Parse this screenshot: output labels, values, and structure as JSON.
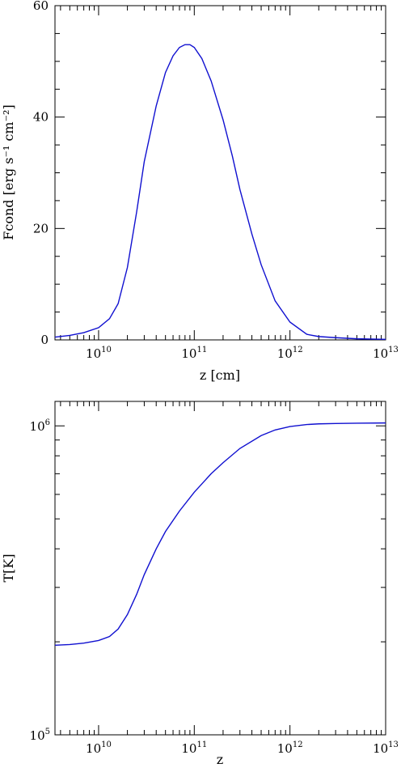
{
  "chart_data": [
    {
      "type": "line",
      "title": "",
      "xlabel": "z [cm]",
      "ylabel": "Fcond [erg s⁻¹ cm⁻²]",
      "x_scale": "log",
      "y_scale": "linear",
      "xlim": [
        3500000000.0,
        10000000000000.0
      ],
      "ylim": [
        0,
        60
      ],
      "x_ticks": [
        {
          "value": 10000000000.0,
          "base": "10",
          "exp": "10"
        },
        {
          "value": 100000000000.0,
          "base": "10",
          "exp": "11"
        },
        {
          "value": 1000000000000.0,
          "base": "10",
          "exp": "12"
        },
        {
          "value": 10000000000000.0,
          "base": "10",
          "exp": "13"
        }
      ],
      "y_ticks": [
        {
          "value": 0,
          "label": "0"
        },
        {
          "value": 20,
          "label": "20"
        },
        {
          "value": 40,
          "label": "40"
        },
        {
          "value": 60,
          "label": "60"
        }
      ],
      "line_color": "#1010d0",
      "series": [
        {
          "x": [
            3500000000.0,
            5000000000.0,
            7000000000.0,
            10000000000.0,
            13000000000.0,
            16000000000.0,
            20000000000.0,
            25000000000.0,
            30000000000.0,
            40000000000.0,
            50000000000.0,
            60000000000.0,
            70000000000.0,
            80000000000.0,
            90000000000.0,
            100000000000.0,
            120000000000.0,
            150000000000.0,
            200000000000.0,
            250000000000.0,
            300000000000.0,
            400000000000.0,
            500000000000.0,
            700000000000.0,
            1000000000000.0,
            1500000000000.0,
            2000000000000.0,
            3000000000000.0,
            5000000000000.0,
            10000000000000.0
          ],
          "y": [
            0.5,
            0.8,
            1.3,
            2.2,
            3.8,
            6.5,
            13,
            23,
            32,
            42,
            48,
            51,
            52.5,
            53,
            53,
            52.5,
            50.5,
            46.5,
            39.5,
            33,
            27,
            19,
            13.5,
            7,
            3.2,
            1.0,
            0.6,
            0.4,
            0.2,
            0.1
          ]
        }
      ]
    },
    {
      "type": "line",
      "title": "",
      "xlabel": "z",
      "ylabel": "T[K]",
      "x_scale": "log",
      "y_scale": "log",
      "xlim": [
        3500000000.0,
        10000000000000.0
      ],
      "ylim": [
        100000.0,
        1200000.0
      ],
      "x_ticks": [
        {
          "value": 10000000000.0,
          "base": "10",
          "exp": "10"
        },
        {
          "value": 100000000000.0,
          "base": "10",
          "exp": "11"
        },
        {
          "value": 1000000000000.0,
          "base": "10",
          "exp": "12"
        },
        {
          "value": 10000000000000.0,
          "base": "10",
          "exp": "13"
        }
      ],
      "y_ticks": [
        {
          "value": 100000.0,
          "base": "10",
          "exp": "5"
        },
        {
          "value": 1000000.0,
          "base": "10",
          "exp": "6"
        }
      ],
      "line_color": "#1010d0",
      "series": [
        {
          "x": [
            3500000000.0,
            5000000000.0,
            7000000000.0,
            10000000000.0,
            13000000000.0,
            16000000000.0,
            20000000000.0,
            25000000000.0,
            30000000000.0,
            40000000000.0,
            50000000000.0,
            70000000000.0,
            100000000000.0,
            150000000000.0,
            200000000000.0,
            300000000000.0,
            500000000000.0,
            700000000000.0,
            1000000000000.0,
            1500000000000.0,
            2000000000000.0,
            3000000000000.0,
            5000000000000.0,
            10000000000000.0
          ],
          "y": [
            195000.0,
            196000.0,
            198000.0,
            202000.0,
            208000.0,
            220000.0,
            245000.0,
            285000.0,
            330000.0,
            400000.0,
            455000.0,
            530000.0,
            610000.0,
            700000.0,
            760000.0,
            845000.0,
            930000.0,
            970000.0,
            995000.0,
            1010000.0,
            1015000.0,
            1018000.0,
            1020000.0,
            1022000.0
          ]
        }
      ]
    }
  ]
}
